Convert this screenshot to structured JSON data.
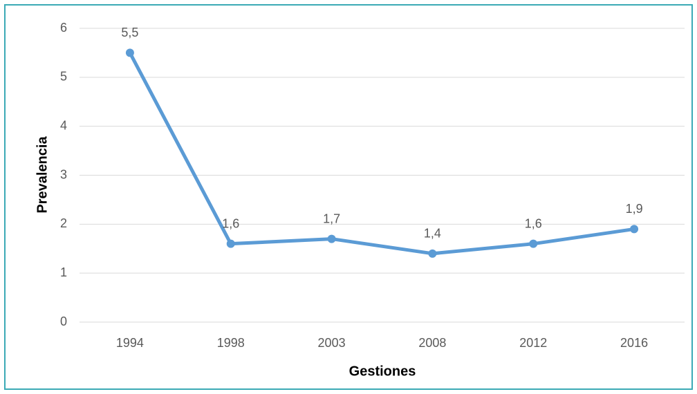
{
  "chart_data": {
    "type": "line",
    "x_label": "Gestiones",
    "y_label": "Prevalencia",
    "categories": [
      "1994",
      "1998",
      "2003",
      "2008",
      "2012",
      "2016"
    ],
    "series": [
      {
        "name": "Prevalencia",
        "color": "#5b9bd5",
        "values": [
          5.5,
          1.6,
          1.7,
          1.4,
          1.6,
          1.9
        ],
        "value_labels": [
          "5,5",
          "1,6",
          "1,7",
          "1,4",
          "1,6",
          "1,9"
        ]
      }
    ],
    "ylim": [
      0,
      6
    ],
    "yticks": [
      0,
      1,
      2,
      3,
      4,
      5,
      6
    ],
    "grid": true
  }
}
